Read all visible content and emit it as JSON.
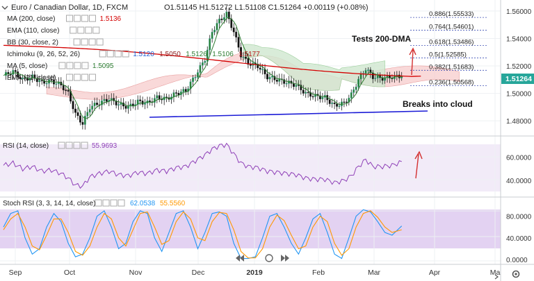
{
  "header": {
    "title": "Euro / Canadian Dollar, 1D, FXCM",
    "ohlc": "O1.51145 H1.51272 L1.51108 C1.51264 +0.00119 (+0.08%)"
  },
  "indicators": [
    {
      "label": "MA (200, close)",
      "values": [
        "1.5136"
      ],
      "colors": [
        "#d40000"
      ]
    },
    {
      "label": "EMA (110, close)",
      "values": [],
      "colors": []
    },
    {
      "label": "BB (30, close, 2)",
      "values": [],
      "colors": []
    },
    {
      "label": "Ichimoku (9, 26, 52, 26)",
      "values": [
        "1.5120",
        "1.5050",
        "1.5126",
        "1.5106",
        "1.5177"
      ],
      "colors": [
        "#1f5fd6",
        "#8b1a1a",
        "#2e7d32",
        "#2e7d32",
        "#b71c1c"
      ]
    },
    {
      "label": "MA (5, close)",
      "values": [
        "1.5095"
      ],
      "colors": [
        "#2e7d32"
      ]
    },
    {
      "label": "EMA (21, close)",
      "values": [],
      "colors": []
    }
  ],
  "price_labels": {
    "current": "1.51264",
    "current_color": "#26a69a"
  },
  "annotations": {
    "tests": "Tests 200-DMA",
    "breaks": "Breaks into cloud"
  },
  "rsi": {
    "label": "RSI (14, close)",
    "value": "55.9693",
    "value_color": "#8e3fb7"
  },
  "stoch": {
    "label": "Stoch RSI (3, 3, 14, 14, close)",
    "k": "62.0538",
    "d": "55.5560",
    "k_color": "#2196f3",
    "d_color": "#ff9800"
  },
  "chart_data": [
    {
      "type": "candlestick",
      "title": "Euro / Canadian Dollar, 1D, FXCM",
      "x_ticks": [
        "Sep",
        "Oct",
        "Nov",
        "Dec",
        "2019",
        "Feb",
        "Mar",
        "Apr",
        "Ma"
      ],
      "y_ticks": [
        "1.56000",
        "1.54000",
        "1.52000",
        "1.50000",
        "1.48000"
      ],
      "ylim": [
        1.472,
        1.566
      ],
      "fib_levels": [
        {
          "label": "0.886(1.55533)",
          "value": 1.55533
        },
        {
          "label": "0.764(1.54601)",
          "value": 1.54601
        },
        {
          "label": "0.618(1.53486)",
          "value": 1.53486
        },
        {
          "label": "0.5(1.52585)",
          "value": 1.52585
        },
        {
          "label": "0.382(1.51683)",
          "value": 1.51683
        },
        {
          "label": "0.236(1.50568)",
          "value": 1.50568
        }
      ],
      "close_path": [
        [
          0,
          1.513
        ],
        [
          4,
          1.516
        ],
        [
          8,
          1.51
        ],
        [
          12,
          1.512
        ],
        [
          16,
          1.508
        ],
        [
          20,
          1.509
        ],
        [
          24,
          1.506
        ],
        [
          27,
          1.5
        ],
        [
          30,
          1.485
        ],
        [
          33,
          1.478
        ],
        [
          36,
          1.49
        ],
        [
          40,
          1.493
        ],
        [
          44,
          1.496
        ],
        [
          48,
          1.492
        ],
        [
          52,
          1.49
        ],
        [
          56,
          1.494
        ],
        [
          60,
          1.493
        ],
        [
          64,
          1.497
        ],
        [
          68,
          1.496
        ],
        [
          72,
          1.5
        ],
        [
          76,
          1.502
        ],
        [
          80,
          1.513
        ],
        [
          84,
          1.525
        ],
        [
          87,
          1.545
        ],
        [
          90,
          1.553
        ],
        [
          93,
          1.558
        ],
        [
          96,
          1.545
        ],
        [
          99,
          1.528
        ],
        [
          102,
          1.522
        ],
        [
          106,
          1.52
        ],
        [
          110,
          1.512
        ],
        [
          114,
          1.51
        ],
        [
          118,
          1.508
        ],
        [
          122,
          1.506
        ],
        [
          126,
          1.5
        ],
        [
          130,
          1.498
        ],
        [
          134,
          1.497
        ],
        [
          138,
          1.491
        ],
        [
          142,
          1.493
        ],
        [
          145,
          1.499
        ],
        [
          148,
          1.51
        ],
        [
          151,
          1.518
        ],
        [
          154,
          1.512
        ],
        [
          158,
          1.511
        ],
        [
          162,
          1.512
        ],
        [
          166,
          1.5126
        ]
      ]
    },
    {
      "type": "line",
      "title": "RSI (14, close)",
      "y_ticks": [
        "60.0000",
        "40.0000"
      ],
      "ylim": [
        28,
        76
      ],
      "x": [
        0,
        4,
        8,
        12,
        16,
        20,
        24,
        27,
        30,
        33,
        36,
        40,
        44,
        48,
        52,
        56,
        60,
        64,
        68,
        72,
        76,
        80,
        84,
        87,
        90,
        93,
        96,
        99,
        102,
        106,
        110,
        114,
        118,
        122,
        126,
        130,
        134,
        138,
        142,
        145,
        148,
        151,
        154,
        158,
        162,
        166
      ],
      "values": [
        53,
        55,
        50,
        52,
        48,
        49,
        46,
        42,
        36,
        35,
        43,
        46,
        48,
        45,
        44,
        47,
        46,
        49,
        48,
        51,
        52,
        57,
        62,
        67,
        70,
        71,
        63,
        55,
        52,
        51,
        48,
        47,
        46,
        45,
        42,
        41,
        41,
        38,
        40,
        44,
        52,
        58,
        52,
        52,
        53,
        56
      ]
    },
    {
      "type": "line",
      "title": "Stoch RSI (3, 3, 14, 14, close)",
      "y_ticks": [
        "80.0000",
        "40.0000",
        "0.0000"
      ],
      "ylim": [
        -5,
        100
      ],
      "x": [
        0,
        3,
        6,
        9,
        12,
        15,
        18,
        21,
        24,
        27,
        30,
        33,
        36,
        39,
        42,
        45,
        48,
        51,
        54,
        57,
        60,
        63,
        66,
        69,
        72,
        75,
        78,
        81,
        84,
        87,
        90,
        93,
        96,
        99,
        102,
        105,
        108,
        111,
        114,
        117,
        120,
        123,
        126,
        129,
        132,
        135,
        138,
        141,
        144,
        147,
        150,
        153,
        156,
        159,
        162,
        166
      ],
      "series": [
        {
          "name": "K",
          "values": [
            60,
            85,
            90,
            40,
            10,
            20,
            60,
            85,
            70,
            30,
            5,
            10,
            40,
            80,
            90,
            60,
            20,
            30,
            70,
            90,
            85,
            40,
            15,
            50,
            85,
            90,
            60,
            20,
            50,
            85,
            88,
            80,
            30,
            2,
            2,
            5,
            40,
            80,
            85,
            60,
            30,
            10,
            40,
            75,
            85,
            50,
            10,
            2,
            40,
            80,
            92,
            88,
            70,
            50,
            45,
            62
          ]
        },
        {
          "name": "D",
          "values": [
            55,
            75,
            85,
            60,
            25,
            18,
            45,
            75,
            75,
            50,
            15,
            8,
            25,
            60,
            85,
            75,
            40,
            25,
            55,
            85,
            88,
            60,
            28,
            35,
            70,
            88,
            75,
            40,
            35,
            70,
            87,
            85,
            55,
            15,
            3,
            3,
            20,
            60,
            82,
            72,
            45,
            20,
            25,
            60,
            80,
            70,
            30,
            8,
            20,
            60,
            85,
            90,
            78,
            60,
            50,
            55
          ]
        }
      ]
    }
  ]
}
